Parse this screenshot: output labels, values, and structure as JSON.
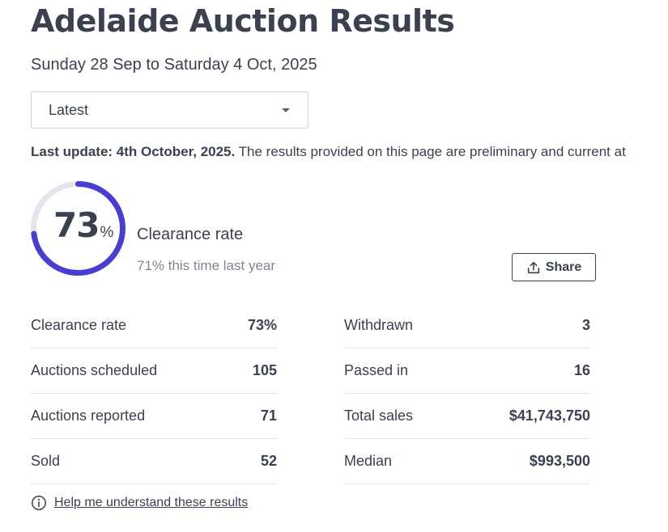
{
  "header": {
    "title": "Adelaide Auction Results",
    "date_range": "Sunday 28 Sep to Saturday 4 Oct, 2025"
  },
  "period_select": {
    "selected": "Latest"
  },
  "notice": {
    "bold": "Last update: 4th October, 2025.",
    "text": " The results provided on this page are preliminary and current at"
  },
  "clearance": {
    "value": "73",
    "percent_sign": "%",
    "fraction": 0.73,
    "label": "Clearance rate",
    "last_year": "71% this time last year",
    "ring_color": "#4a3dd6",
    "track_color": "#e4e6ec"
  },
  "share_button": {
    "label": "Share"
  },
  "stats_left": [
    {
      "label": "Clearance rate",
      "value": "73%"
    },
    {
      "label": "Auctions scheduled",
      "value": "105"
    },
    {
      "label": "Auctions reported",
      "value": "71"
    },
    {
      "label": "Sold",
      "value": "52"
    }
  ],
  "stats_right": [
    {
      "label": "Withdrawn",
      "value": "3"
    },
    {
      "label": "Passed in",
      "value": "16"
    },
    {
      "label": "Total sales",
      "value": "$41,743,750"
    },
    {
      "label": "Median",
      "value": "$993,500"
    }
  ],
  "help": {
    "link_text": "Help me understand these results",
    "icon": "info-icon"
  }
}
